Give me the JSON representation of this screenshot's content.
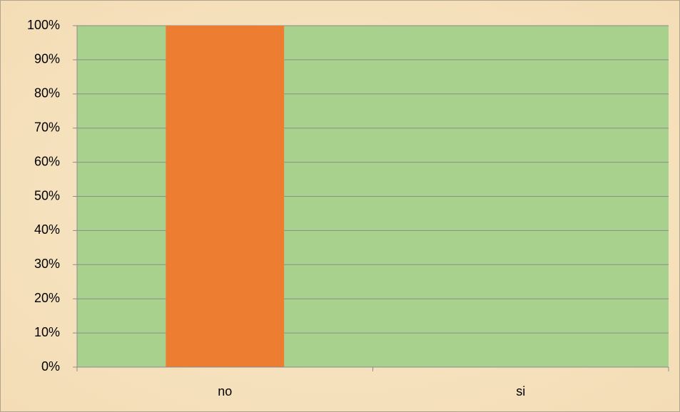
{
  "chart_data": {
    "type": "bar",
    "categories": [
      "no",
      "si"
    ],
    "values": [
      100,
      0
    ],
    "color": "#ed7d31",
    "plot_background": "#a9d18e",
    "ylim": [
      0,
      100
    ],
    "yticks": [
      {
        "value": 0,
        "label": "0%"
      },
      {
        "value": 10,
        "label": "10%"
      },
      {
        "value": 20,
        "label": "20%"
      },
      {
        "value": 30,
        "label": "30%"
      },
      {
        "value": 40,
        "label": "40%"
      },
      {
        "value": 50,
        "label": "50%"
      },
      {
        "value": 60,
        "label": "60%"
      },
      {
        "value": 70,
        "label": "70%"
      },
      {
        "value": 80,
        "label": "80%"
      },
      {
        "value": 90,
        "label": "90%"
      },
      {
        "value": 100,
        "label": "100%"
      }
    ],
    "grid": true
  }
}
